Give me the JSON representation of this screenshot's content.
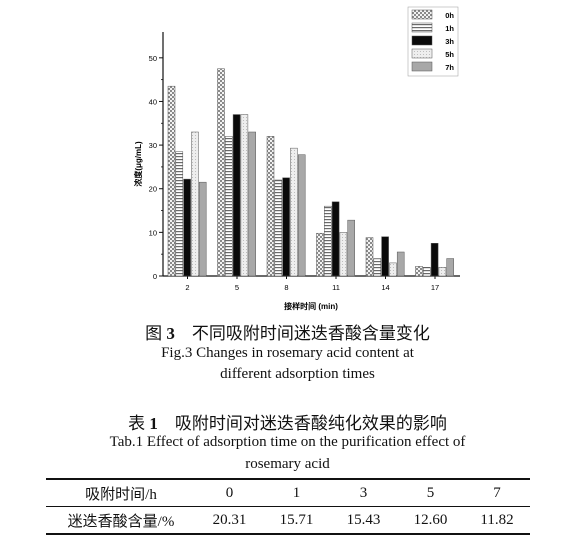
{
  "figure": {
    "caption_cn_prefix": "图",
    "caption_num": "3",
    "caption_cn_text": "不同吸附时间迷迭香酸含量变化",
    "caption_en_line1": "Fig.3    Changes in rosemary acid content at",
    "caption_en_line2": "different adsorption times"
  },
  "chart_data": {
    "type": "bar",
    "xlabel": "接样时间 (min)",
    "ylabel": "浓度(μg/mL)",
    "categories": [
      "2",
      "5",
      "8",
      "11",
      "14",
      "17"
    ],
    "ylim": [
      0,
      55
    ],
    "yticks": [
      "0",
      "10",
      "20",
      "30",
      "40",
      "50"
    ],
    "legend_position": "top-right",
    "series": [
      {
        "name": "0h",
        "values": [
          43.5,
          47.5,
          32.0,
          9.8,
          8.8,
          2.2
        ],
        "color": "#c8c8c8",
        "pattern": "checker"
      },
      {
        "name": "1h",
        "values": [
          28.5,
          32.0,
          22.0,
          16.0,
          4.0,
          2.0
        ],
        "color": "#ffffff",
        "pattern": "hstripe"
      },
      {
        "name": "3h",
        "values": [
          22.2,
          37.0,
          22.5,
          17.0,
          9.0,
          7.5
        ],
        "color": "#0a0a0a",
        "pattern": "solid"
      },
      {
        "name": "5h",
        "values": [
          33.0,
          37.0,
          29.3,
          10.0,
          3.0,
          2.0
        ],
        "color": "#e4e4e4",
        "pattern": "light"
      },
      {
        "name": "7h",
        "values": [
          21.5,
          33.0,
          27.8,
          12.8,
          5.5,
          4.0
        ],
        "color": "#a8a8a8",
        "pattern": "solid"
      }
    ]
  },
  "table": {
    "caption_cn_prefix": "表",
    "caption_num": "1",
    "caption_cn_text": "吸附时间对迷迭香酸纯化效果的影响",
    "caption_en_line1": "Tab.1    Effect of adsorption time on the purification effect of",
    "caption_en_line2": "rosemary acid",
    "header_label": "吸附时间/h",
    "header_values": [
      "0",
      "1",
      "3",
      "5",
      "7"
    ],
    "row_label": "迷迭香酸含量/%",
    "row_values": [
      "20.31",
      "15.71",
      "15.43",
      "12.60",
      "11.82"
    ]
  }
}
